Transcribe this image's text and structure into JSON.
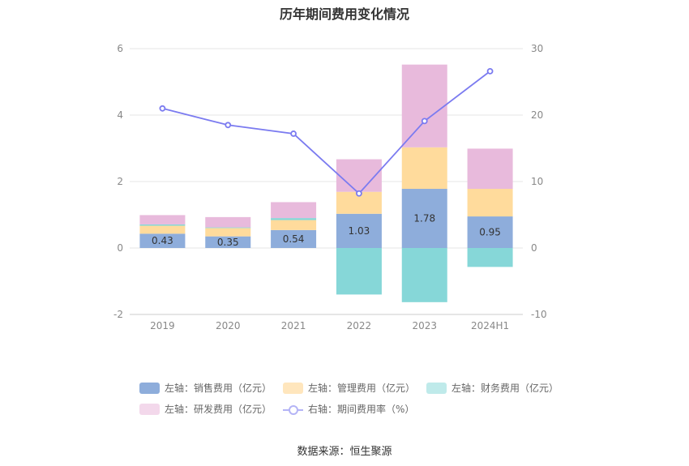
{
  "chart_data": {
    "type": "bar",
    "title": "历年期间费用变化情况",
    "categories": [
      "2019",
      "2020",
      "2021",
      "2022",
      "2023",
      "2024H1"
    ],
    "series": [
      {
        "name": "左轴：销售费用（亿元）",
        "axis": "left",
        "color": "#8eaddb",
        "values": [
          0.43,
          0.35,
          0.54,
          1.03,
          1.78,
          0.95
        ]
      },
      {
        "name": "左轴：管理费用（亿元）",
        "axis": "left",
        "color": "#ffdb9c",
        "values": [
          0.24,
          0.25,
          0.3,
          0.66,
          1.25,
          0.83
        ]
      },
      {
        "name": "左轴：财务费用（亿元）",
        "axis": "left",
        "color": "#86d7d8",
        "values": [
          0.04,
          0.02,
          0.06,
          -1.4,
          -1.63,
          -0.57
        ]
      },
      {
        "name": "左轴：研发费用（亿元）",
        "axis": "left",
        "color": "#e8badc",
        "values": [
          0.28,
          0.31,
          0.48,
          0.98,
          2.49,
          1.21
        ]
      },
      {
        "name": "右轴：期间费用率（%）",
        "axis": "right",
        "type": "line",
        "color": "#7b7bf0",
        "values": [
          21.0,
          18.5,
          17.2,
          8.2,
          19.1,
          26.6
        ]
      }
    ],
    "data_labels": [
      "0.43",
      "0.35",
      "0.54",
      "1.03",
      "1.78",
      "0.95"
    ],
    "y_left": {
      "min": -2,
      "max": 6,
      "ticks": [
        "-2",
        "0",
        "2",
        "4",
        "6"
      ]
    },
    "y_right": {
      "min": -10,
      "max": 30,
      "ticks": [
        "-10",
        "0",
        "10",
        "20",
        "30"
      ]
    },
    "grid": true,
    "legend_position": "bottom"
  },
  "legend": {
    "items": [
      {
        "label": "左轴：销售费用（亿元）",
        "color": "#8eaddb"
      },
      {
        "label": "左轴：管理费用（亿元）",
        "color": "#ffe6bd"
      },
      {
        "label": "左轴：财务费用（亿元）",
        "color": "#bfeaea"
      },
      {
        "label": "左轴：研发费用（亿元）",
        "color": "#f3d8eb"
      }
    ],
    "line_label": "右轴：期间费用率（%）"
  },
  "source": "数据来源：恒生聚源"
}
